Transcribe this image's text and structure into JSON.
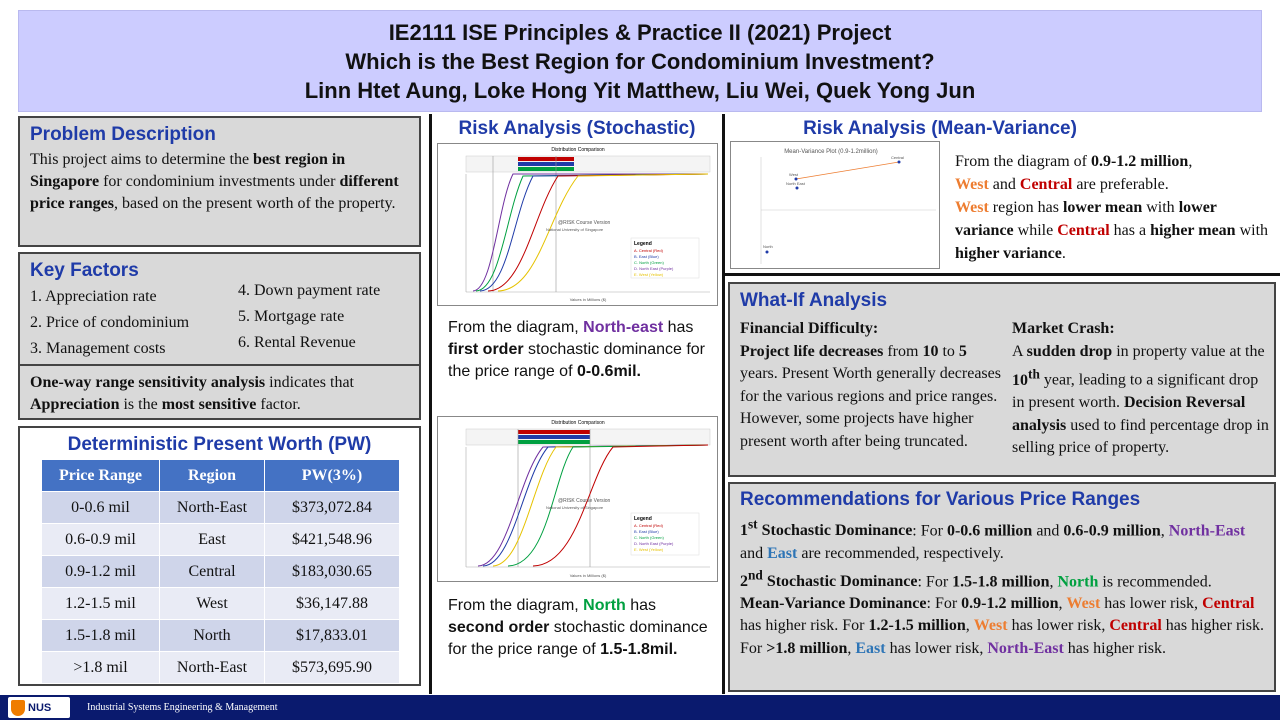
{
  "header": {
    "title_line1": "IE2111 ISE Principles & Practice II (2021) Project",
    "title_line2": "Which is the Best Region for Condominium Investment?",
    "authors": "Linn Htet Aung, Loke Hong Yit Matthew, Liu Wei, Quek Yong Jun"
  },
  "problem": {
    "title": "Problem Description",
    "t1": "This project aims to determine the ",
    "b1": "best region in Singapore",
    "t2": " for condominium investments under ",
    "b2": "different price ranges",
    "t3": ", based on the present worth of the property."
  },
  "key_factors": {
    "title": "Key Factors",
    "items": [
      "1. Appreciation rate",
      "2. Price of condominium",
      "3. Management  costs",
      "4. Down payment rate",
      "5. Mortgage rate",
      "6. Rental Revenue"
    ],
    "sens_b1": "One-way range sensitivity analysis",
    "sens_t1": " indicates that ",
    "sens_b2": "Appreciation",
    "sens_t2": " is the ",
    "sens_b3": "most sensitive",
    "sens_t3": " factor."
  },
  "pw_table": {
    "title": "Deterministic Present Worth (PW)",
    "headers": [
      "Price Range",
      "Region",
      "PW(3%)"
    ],
    "rows": [
      [
        "0-0.6 mil",
        "North-East",
        "$373,072.84"
      ],
      [
        "0.6-0.9 mil",
        "East",
        "$421,548.96"
      ],
      [
        "0.9-1.2 mil",
        "Central",
        "$183,030.65"
      ],
      [
        "1.2-1.5 mil",
        "West",
        "$36,147.88"
      ],
      [
        "1.5-1.8 mil",
        "North",
        "$17,833.01"
      ],
      [
        ">1.8 mil",
        "North-East",
        "$573,695.90"
      ]
    ]
  },
  "stochastic": {
    "title": "Risk Analysis (Stochastic)",
    "chart_title": "Distribution Comparison",
    "watermark1": "@RISK Course Version",
    "watermark2": "National University of Singapore",
    "legend_title": "Legend",
    "chart1_legend": [
      "A.  Central (Red)",
      "B.  East (Blue)",
      "C.  North (Green)",
      "D.  North East (Purple)",
      "E.  West (Yellow)"
    ],
    "chart2_legend": [
      "A.  Central (Red)",
      "B.  East (Blue)",
      "C.  North (Green)",
      "D.  North East (Purple)",
      "E.  West (Yellow)"
    ],
    "xaxis_label": "Values in Millions ($)",
    "text1_a": "From the diagram, ",
    "text1_b": "North-east",
    "text1_c": " has ",
    "text1_d": "first order",
    "text1_e": " stochastic dominance for the price range of ",
    "text1_f": "0-0.6mil.",
    "text2_a": "From the diagram, ",
    "text2_b": "North",
    "text2_c": " has ",
    "text2_d": "second order",
    "text2_e": " stochastic dominance for the price range of ",
    "text2_f": "1.5-1.8mil."
  },
  "mean_variance": {
    "title": "Risk Analysis (Mean-Variance)",
    "plot_title": "Mean-Variance Plot (0.9-1.2million)",
    "point_labels": [
      "Central",
      "West",
      "North East",
      "North"
    ],
    "t1": "From the diagram  of ",
    "b1": "0.9-1.2 million",
    "t2": ",",
    "west": "West",
    "t3": " and ",
    "central": "Central",
    "t4": " are preferable.",
    "west2": "West",
    "t5": " region has ",
    "b2": "lower mean",
    "t6": " with ",
    "b3": "lower variance",
    "t7": " while  ",
    "central2": "Central",
    "t8": " has a ",
    "b4": "higher mean",
    "t9": " with ",
    "b5": "higher variance",
    "t10": "."
  },
  "whatif": {
    "title": "What-If Analysis",
    "c1_head": "Financial Difficulty:",
    "c1_b1": "Project life decreases",
    "c1_t1": " from ",
    "c1_b2": "10",
    "c1_t2": " to ",
    "c1_b3": "5",
    "c1_t3": " years. Present Worth generally decreases for the various regions and price ranges. However, some projects have higher present worth after being truncated.",
    "c2_head": "Market Crash:",
    "c2_t1": "A ",
    "c2_b1": "sudden drop",
    "c2_t2": " in property value at the ",
    "c2_b2": "10",
    "c2_sup": "th",
    "c2_t3": " year, leading to a significant  drop in present worth. ",
    "c2_b3": "Decision Reversal analysis",
    "c2_t4": " used to find percentage drop in selling price of property."
  },
  "recommendations": {
    "title": "Recommendations for Various Price Ranges",
    "p1_num": "1",
    "p1_sup": "st",
    "p1_head": " Stochastic Dominance",
    "p1_t1": ": For ",
    "p1_b1": "0-0.6 million",
    "p1_t2": " and ",
    "p1_b2": "0.6-0.9 million",
    "p1_t3": ",",
    "p1_ne": "North-East",
    "p1_t4": " and ",
    "p1_east": "East",
    "p1_t5": " are recommended, respectively.",
    "p2_num": "2",
    "p2_sup": "nd",
    "p2_head": " Stochastic Dominance",
    "p2_t1": ": For ",
    "p2_b1": "1.5-1.8 million",
    "p2_t2": ", ",
    "p2_north": "North",
    "p2_t3": " is recommended.",
    "p3_head": "Mean-Variance Dominance",
    "p3_t1": ": For ",
    "p3_b1": "0.9-1.2 million",
    "p3_t2": ", ",
    "p3_west": "West",
    "p3_t3": " has lower risk, ",
    "p3_central": "Central",
    "p3_t4": " has higher risk. For ",
    "p3_b2": "1.2-1.5 million",
    "p3_t5": ", ",
    "p3_west2": "West",
    "p3_t6": " has lower risk, ",
    "p3_central2": "Central",
    "p3_t7": " has higher risk. For ",
    "p3_b3": ">1.8 million",
    "p3_t8": ", ",
    "p3_east": "East",
    "p3_t9": " has lower risk,",
    "p3_ne": "North-East",
    "p3_t10": " has higher risk."
  },
  "footer": {
    "logo": "NUS",
    "department": "Industrial Systems Engineering & Management"
  },
  "colors": {
    "banner": "#ccccff",
    "section_title": "#1f3ba8",
    "table_header": "#4472c4",
    "footer": "#0a1a6e",
    "west": "#ed7d31",
    "central": "#c00000",
    "north_east": "#7030a0",
    "east": "#2e75b6",
    "north": "#00a040"
  }
}
